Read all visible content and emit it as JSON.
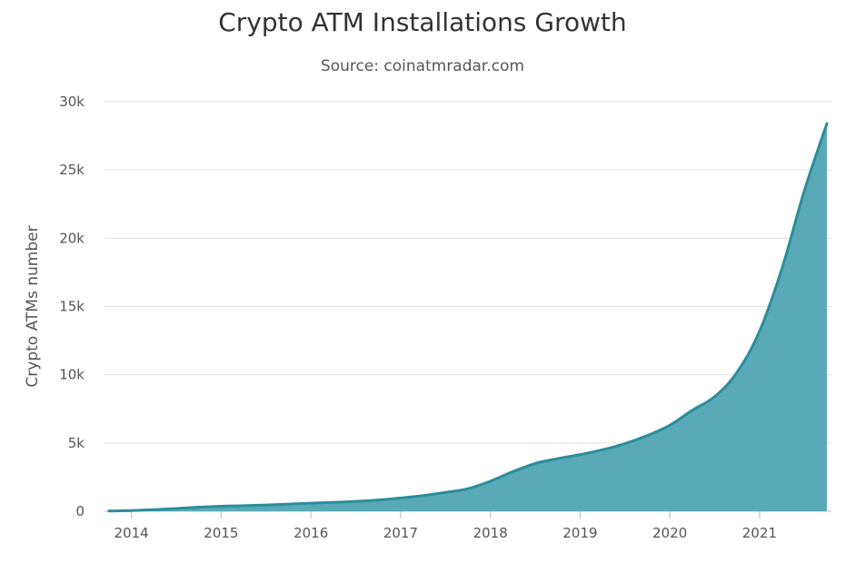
{
  "chart_data": {
    "type": "area",
    "title": "Crypto ATM Installations Growth",
    "subtitle": "Source: coinatmradar.com",
    "ylabel": "Crypto ATMs number",
    "xlabel": "",
    "ylim": [
      0,
      30000
    ],
    "y_ticks": [
      {
        "value": 0,
        "label": "0"
      },
      {
        "value": 5000,
        "label": "5k"
      },
      {
        "value": 10000,
        "label": "10k"
      },
      {
        "value": 15000,
        "label": "15k"
      },
      {
        "value": 20000,
        "label": "20k"
      },
      {
        "value": 25000,
        "label": "25k"
      },
      {
        "value": 30000,
        "label": "30k"
      }
    ],
    "x_ticks": [
      {
        "value": 2014,
        "label": "2014"
      },
      {
        "value": 2015,
        "label": "2015"
      },
      {
        "value": 2016,
        "label": "2016"
      },
      {
        "value": 2017,
        "label": "2017"
      },
      {
        "value": 2018,
        "label": "2018"
      },
      {
        "value": 2019,
        "label": "2019"
      },
      {
        "value": 2020,
        "label": "2020"
      },
      {
        "value": 2021,
        "label": "2021"
      }
    ],
    "xlim": [
      2013.7,
      2021.8
    ],
    "grid": true,
    "series": [
      {
        "color": "#2a8e9a",
        "fill": "#5aa9b6",
        "points": [
          [
            2013.75,
            20
          ],
          [
            2014.0,
            50
          ],
          [
            2014.25,
            120
          ],
          [
            2014.5,
            200
          ],
          [
            2014.75,
            300
          ],
          [
            2015.0,
            370
          ],
          [
            2015.25,
            410
          ],
          [
            2015.5,
            460
          ],
          [
            2015.75,
            520
          ],
          [
            2016.0,
            590
          ],
          [
            2016.25,
            650
          ],
          [
            2016.5,
            720
          ],
          [
            2016.75,
            820
          ],
          [
            2017.0,
            970
          ],
          [
            2017.25,
            1150
          ],
          [
            2017.5,
            1380
          ],
          [
            2017.75,
            1650
          ],
          [
            2018.0,
            2200
          ],
          [
            2018.25,
            2900
          ],
          [
            2018.5,
            3500
          ],
          [
            2018.75,
            3850
          ],
          [
            2019.0,
            4150
          ],
          [
            2019.25,
            4500
          ],
          [
            2019.5,
            4950
          ],
          [
            2019.75,
            5550
          ],
          [
            2020.0,
            6300
          ],
          [
            2020.25,
            7400
          ],
          [
            2020.5,
            8400
          ],
          [
            2020.75,
            10200
          ],
          [
            2021.0,
            13200
          ],
          [
            2021.25,
            17800
          ],
          [
            2021.5,
            23500
          ],
          [
            2021.75,
            28400
          ]
        ]
      }
    ]
  }
}
